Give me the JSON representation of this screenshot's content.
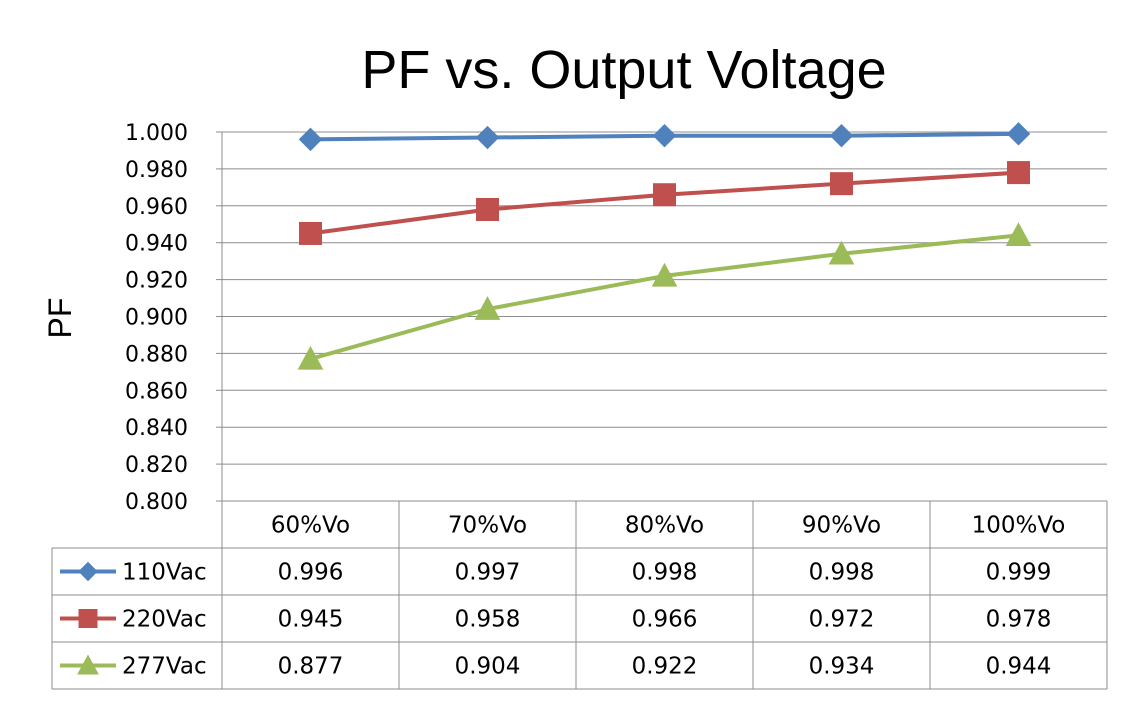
{
  "chart_data": {
    "type": "line",
    "title": "PF vs. Output Voltage",
    "xlabel": "",
    "ylabel": "PF",
    "categories": [
      "60%Vo",
      "70%Vo",
      "80%Vo",
      "90%Vo",
      "100%Vo"
    ],
    "ylim": [
      0.8,
      1.0
    ],
    "yticks": [
      1.0,
      0.98,
      0.96,
      0.94,
      0.92,
      0.9,
      0.88,
      0.86,
      0.84,
      0.82,
      0.8
    ],
    "ytick_labels": [
      "1.000",
      "0.980",
      "0.960",
      "0.940",
      "0.920",
      "0.900",
      "0.880",
      "0.860",
      "0.840",
      "0.820",
      "0.800"
    ],
    "grid": true,
    "data_table": true,
    "series": [
      {
        "name": "110Vac",
        "marker": "diamond",
        "color": "#4F81BD",
        "values": [
          0.996,
          0.997,
          0.998,
          0.998,
          0.999
        ],
        "labels": [
          "0.996",
          "0.997",
          "0.998",
          "0.998",
          "0.999"
        ]
      },
      {
        "name": "220Vac",
        "marker": "square",
        "color": "#C0504D",
        "values": [
          0.945,
          0.958,
          0.966,
          0.972,
          0.978
        ],
        "labels": [
          "0.945",
          "0.958",
          "0.966",
          "0.972",
          "0.978"
        ]
      },
      {
        "name": "277Vac",
        "marker": "triangle",
        "color": "#9BBB59",
        "values": [
          0.877,
          0.904,
          0.922,
          0.934,
          0.944
        ],
        "labels": [
          "0.877",
          "0.904",
          "0.922",
          "0.934",
          "0.944"
        ]
      }
    ]
  }
}
